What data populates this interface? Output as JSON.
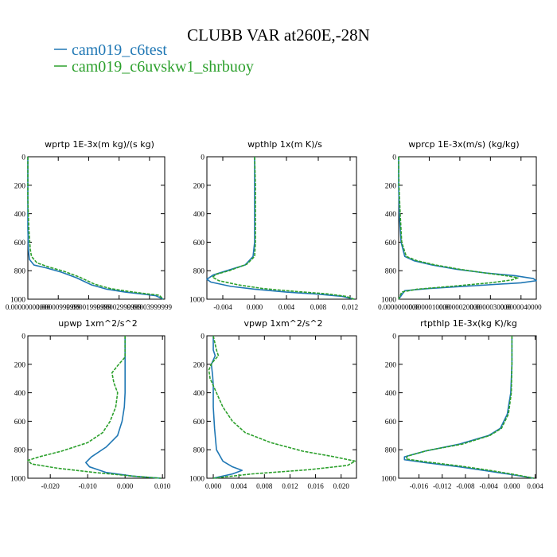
{
  "figure": {
    "title": "CLUBB VAR at260E,-28N",
    "legend": [
      {
        "label": "cam019_c6test",
        "color": "#1f77b4"
      },
      {
        "label": "cam019_c6uvskw1_shrbuoy",
        "color": "#2ca02c"
      }
    ]
  },
  "chart_data": [
    {
      "type": "line",
      "title": "wprtp  1E-3x(m kg)/(s kg)",
      "xlim": [
        0,
        4.5e-05
      ],
      "ylim": [
        0,
        1000
      ],
      "x_ticks": [
        0,
        1e-05,
        2e-05,
        3e-05,
        4e-05
      ],
      "x_tick_labels": [
        "0.00000000000",
        "0.00000999999",
        "0.00001999999",
        "0.00002999999",
        "0.00003999999"
      ],
      "y_ticks": [
        0,
        200,
        400,
        600,
        800,
        1000
      ],
      "y_tick_labels": [
        "0",
        "200",
        "400",
        "600",
        "800",
        "1000"
      ],
      "series": [
        {
          "name": "cam019_c6test",
          "color": "#1f77b4",
          "dashed": false,
          "points": [
            [
              0,
              0
            ],
            [
              0,
              300
            ],
            [
              0,
              500
            ],
            [
              2e-07,
              650
            ],
            [
              5e-07,
              720
            ],
            [
              2e-06,
              760
            ],
            [
              6e-06,
              780
            ],
            [
              1.1e-05,
              810
            ],
            [
              1.6e-05,
              850
            ],
            [
              2.1e-05,
              900
            ],
            [
              2.6e-05,
              930
            ],
            [
              3.2e-05,
              950
            ],
            [
              3.8e-05,
              965
            ],
            [
              4.2e-05,
              975
            ],
            [
              4.45e-05,
              1000
            ]
          ]
        },
        {
          "name": "cam019_c6uvskw1_shrbuoy",
          "color": "#2ca02c",
          "dashed": true,
          "points": [
            [
              0,
              0
            ],
            [
              0,
              300
            ],
            [
              3e-07,
              500
            ],
            [
              8e-07,
              650
            ],
            [
              1.2e-06,
              700
            ],
            [
              3e-06,
              745
            ],
            [
              7e-06,
              775
            ],
            [
              1.2e-05,
              805
            ],
            [
              1.7e-05,
              845
            ],
            [
              2.2e-05,
              895
            ],
            [
              2.7e-05,
              925
            ],
            [
              3.3e-05,
              945
            ],
            [
              3.9e-05,
              962
            ],
            [
              4.32e-05,
              972
            ],
            [
              4.45e-05,
              1000
            ]
          ]
        }
      ]
    },
    {
      "type": "line",
      "title": "wpthlp  1x(m K)/s",
      "xlim": [
        -0.006,
        0.0128
      ],
      "ylim": [
        0,
        1000
      ],
      "x_ticks": [
        -0.004,
        0,
        0.004,
        0.008,
        0.012
      ],
      "x_tick_labels": [
        "-0.004",
        "0.000",
        "0.004",
        "0.008",
        "0.012"
      ],
      "y_ticks": [
        0,
        200,
        400,
        600,
        800,
        1000
      ],
      "y_tick_labels": [
        "0",
        "200",
        "400",
        "600",
        "800",
        "1000"
      ],
      "series": [
        {
          "name": "cam019_c6test",
          "color": "#1f77b4",
          "dashed": false,
          "points": [
            [
              0,
              0
            ],
            [
              0,
              200
            ],
            [
              0,
              400
            ],
            [
              0,
              600
            ],
            [
              -0.0002,
              700
            ],
            [
              -0.0012,
              760
            ],
            [
              -0.0035,
              800
            ],
            [
              -0.0052,
              830
            ],
            [
              -0.006,
              860
            ],
            [
              -0.0055,
              880
            ],
            [
              -0.003,
              910
            ],
            [
              0,
              930
            ],
            [
              0.004,
              950
            ],
            [
              0.008,
              965
            ],
            [
              0.011,
              980
            ],
            [
              0.0125,
              1000
            ]
          ]
        },
        {
          "name": "cam019_c6uvskw1_shrbuoy",
          "color": "#2ca02c",
          "dashed": true,
          "points": [
            [
              0,
              0
            ],
            [
              0.0001,
              200
            ],
            [
              0.0001,
              400
            ],
            [
              0.0001,
              600
            ],
            [
              0,
              700
            ],
            [
              -0.001,
              755
            ],
            [
              -0.0032,
              800
            ],
            [
              -0.0048,
              825
            ],
            [
              -0.0053,
              845
            ],
            [
              -0.0045,
              870
            ],
            [
              -0.002,
              900
            ],
            [
              0.001,
              925
            ],
            [
              0.005,
              945
            ],
            [
              0.009,
              962
            ],
            [
              0.0115,
              980
            ],
            [
              0.0125,
              1000
            ]
          ]
        }
      ]
    },
    {
      "type": "line",
      "title": "wprcp  1E-3x(m/s) (kg/kg)",
      "xlim": [
        0,
        4.5e-06
      ],
      "ylim": [
        0,
        1000
      ],
      "x_ticks": [
        0,
        1e-06,
        2e-06,
        3e-06,
        4e-06
      ],
      "x_tick_labels": [
        "0.0000000000",
        "0.0000010000",
        "0.0000020000",
        "0.0000030000",
        "0.0000040000"
      ],
      "y_ticks": [
        0,
        200,
        400,
        600,
        800,
        1000
      ],
      "y_tick_labels": [
        "0",
        "200",
        "400",
        "600",
        "800",
        "1000"
      ],
      "series": [
        {
          "name": "cam019_c6test",
          "color": "#1f77b4",
          "dashed": false,
          "points": [
            [
              0,
              0
            ],
            [
              0,
              200
            ],
            [
              2e-08,
              400
            ],
            [
              8e-08,
              600
            ],
            [
              2e-07,
              700
            ],
            [
              5e-07,
              730
            ],
            [
              1.1e-06,
              760
            ],
            [
              1.9e-06,
              790
            ],
            [
              2.8e-06,
              815
            ],
            [
              3.8e-06,
              835
            ],
            [
              4.4e-06,
              855
            ],
            [
              4.5e-06,
              870
            ],
            [
              4e-06,
              885
            ],
            [
              2.5e-06,
              905
            ],
            [
              1e-06,
              925
            ],
            [
              2e-07,
              940
            ],
            [
              0,
              1000
            ]
          ]
        },
        {
          "name": "cam019_c6uvskw1_shrbuoy",
          "color": "#2ca02c",
          "dashed": true,
          "points": [
            [
              0,
              0
            ],
            [
              1e-08,
              200
            ],
            [
              5e-08,
              400
            ],
            [
              1e-07,
              600
            ],
            [
              2.5e-07,
              700
            ],
            [
              6e-07,
              730
            ],
            [
              1.2e-06,
              760
            ],
            [
              2e-06,
              790
            ],
            [
              2.8e-06,
              815
            ],
            [
              3.5e-06,
              835
            ],
            [
              3.9e-06,
              850
            ],
            [
              3.7e-06,
              865
            ],
            [
              3e-06,
              885
            ],
            [
              1.7e-06,
              910
            ],
            [
              6e-07,
              930
            ],
            [
              1e-07,
              950
            ],
            [
              0,
              1000
            ]
          ]
        }
      ]
    },
    {
      "type": "line",
      "title": "upwp   1xm^2/s^2",
      "xlim": [
        -0.026,
        0.0106
      ],
      "ylim": [
        0,
        1000
      ],
      "x_ticks": [
        -0.02,
        -0.01,
        0,
        0.01
      ],
      "x_tick_labels": [
        "-0.020",
        "-0.010",
        "0.000",
        "0.010"
      ],
      "y_ticks": [
        0,
        200,
        400,
        600,
        800,
        1000
      ],
      "y_tick_labels": [
        "0",
        "200",
        "400",
        "600",
        "800",
        "1000"
      ],
      "series": [
        {
          "name": "cam019_c6test",
          "color": "#1f77b4",
          "dashed": false,
          "points": [
            [
              0,
              0
            ],
            [
              0,
              200
            ],
            [
              0,
              400
            ],
            [
              -0.0002,
              500
            ],
            [
              -0.0008,
              600
            ],
            [
              -0.002,
              700
            ],
            [
              -0.005,
              780
            ],
            [
              -0.009,
              850
            ],
            [
              -0.0105,
              890
            ],
            [
              -0.0095,
              920
            ],
            [
              -0.005,
              960
            ],
            [
              0.002,
              985
            ],
            [
              0.0095,
              1000
            ]
          ]
        },
        {
          "name": "cam019_c6uvskw1_shrbuoy",
          "color": "#2ca02c",
          "dashed": true,
          "points": [
            [
              0,
              0
            ],
            [
              0,
              150
            ],
            [
              -0.002,
              210
            ],
            [
              -0.0035,
              260
            ],
            [
              -0.003,
              330
            ],
            [
              -0.002,
              400
            ],
            [
              -0.0025,
              500
            ],
            [
              -0.004,
              600
            ],
            [
              -0.006,
              680
            ],
            [
              -0.01,
              750
            ],
            [
              -0.017,
              810
            ],
            [
              -0.023,
              850
            ],
            [
              -0.026,
              875
            ],
            [
              -0.025,
              900
            ],
            [
              -0.018,
              930
            ],
            [
              -0.008,
              960
            ],
            [
              0.002,
              985
            ],
            [
              0.0095,
              1000
            ]
          ]
        }
      ]
    },
    {
      "type": "line",
      "title": "vpwp   1xm^2/s^2",
      "xlim": [
        -0.001,
        0.0224
      ],
      "ylim": [
        0,
        1000
      ],
      "x_ticks": [
        0,
        0.004,
        0.008,
        0.012,
        0.016,
        0.02
      ],
      "x_tick_labels": [
        "0.000",
        "0.004",
        "0.008",
        "0.012",
        "0.016",
        "0.020"
      ],
      "y_ticks": [
        0,
        200,
        400,
        600,
        800,
        1000
      ],
      "y_tick_labels": [
        "0",
        "200",
        "400",
        "600",
        "800",
        "1000"
      ],
      "series": [
        {
          "name": "cam019_c6test",
          "color": "#1f77b4",
          "dashed": false,
          "points": [
            [
              0,
              0
            ],
            [
              0,
              100
            ],
            [
              0.0003,
              140
            ],
            [
              -0.0003,
              200
            ],
            [
              -0.0001,
              280
            ],
            [
              0,
              350
            ],
            [
              0,
              500
            ],
            [
              0.0002,
              650
            ],
            [
              0.0005,
              800
            ],
            [
              0.0015,
              880
            ],
            [
              0.003,
              920
            ],
            [
              0.0045,
              945
            ],
            [
              0.003,
              970
            ],
            [
              0.001,
              990
            ],
            [
              0,
              1000
            ]
          ]
        },
        {
          "name": "cam019_c6uvskw1_shrbuoy",
          "color": "#2ca02c",
          "dashed": true,
          "points": [
            [
              0,
              0
            ],
            [
              0.0005,
              100
            ],
            [
              0.0008,
              140
            ],
            [
              -0.0002,
              190
            ],
            [
              -0.0007,
              240
            ],
            [
              -0.0005,
              300
            ],
            [
              0.0005,
              400
            ],
            [
              0.0015,
              500
            ],
            [
              0.003,
              600
            ],
            [
              0.005,
              680
            ],
            [
              0.009,
              750
            ],
            [
              0.014,
              810
            ],
            [
              0.019,
              850
            ],
            [
              0.0222,
              880
            ],
            [
              0.021,
              910
            ],
            [
              0.015,
              940
            ],
            [
              0.006,
              970
            ],
            [
              0,
              1000
            ]
          ]
        }
      ]
    },
    {
      "type": "line",
      "title": "rtpthlp   1E-3x(kg K)/kg",
      "xlim": [
        -0.0195,
        0.0042
      ],
      "ylim": [
        0,
        1000
      ],
      "x_ticks": [
        -0.016,
        -0.012,
        -0.008,
        -0.004,
        0,
        0.004
      ],
      "x_tick_labels": [
        "-0.016",
        "-0.012",
        "-0.008",
        "-0.004",
        "0.000",
        "0.004"
      ],
      "y_ticks": [
        0,
        200,
        400,
        600,
        800,
        1000
      ],
      "y_tick_labels": [
        "0",
        "200",
        "400",
        "600",
        "800",
        "1000"
      ],
      "series": [
        {
          "name": "cam019_c6test",
          "color": "#1f77b4",
          "dashed": false,
          "points": [
            [
              0,
              0
            ],
            [
              0,
              200
            ],
            [
              -0.0002,
              400
            ],
            [
              -0.0008,
              550
            ],
            [
              -0.002,
              650
            ],
            [
              -0.004,
              700
            ],
            [
              -0.009,
              760
            ],
            [
              -0.015,
              810
            ],
            [
              -0.0185,
              850
            ],
            [
              -0.0185,
              870
            ],
            [
              -0.015,
              890
            ],
            [
              -0.009,
              920
            ],
            [
              -0.004,
              950
            ],
            [
              0,
              975
            ],
            [
              0.0038,
              1000
            ]
          ]
        },
        {
          "name": "cam019_c6uvskw1_shrbuoy",
          "color": "#2ca02c",
          "dashed": true,
          "points": [
            [
              0,
              0
            ],
            [
              0,
              200
            ],
            [
              -0.0001,
              400
            ],
            [
              -0.0006,
              550
            ],
            [
              -0.0018,
              650
            ],
            [
              -0.0038,
              700
            ],
            [
              -0.0085,
              760
            ],
            [
              -0.0145,
              805
            ],
            [
              -0.018,
              845
            ],
            [
              -0.0182,
              865
            ],
            [
              -0.0148,
              885
            ],
            [
              -0.0088,
              915
            ],
            [
              -0.0038,
              945
            ],
            [
              0.0002,
              972
            ],
            [
              0.0038,
              1000
            ]
          ]
        }
      ]
    }
  ]
}
